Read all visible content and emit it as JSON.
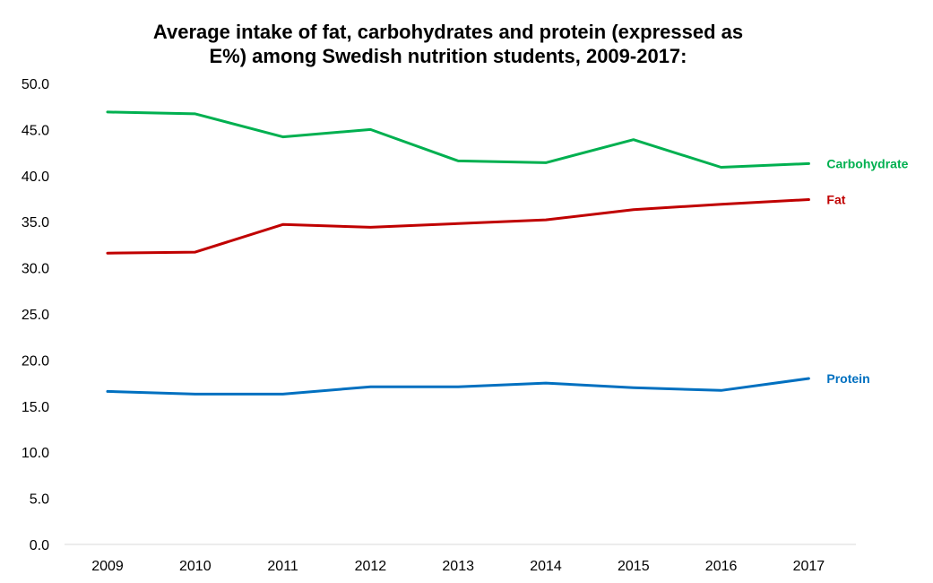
{
  "chart_data": {
    "type": "line",
    "title": [
      "Average intake of fat, carbohydrates and protein (expressed as",
      "E%) among Swedish nutrition students, 2009-2017:"
    ],
    "xlabel": "",
    "ylabel": "",
    "ylim": [
      0,
      50
    ],
    "yticks": [
      "0.0",
      "5.0",
      "10.0",
      "15.0",
      "20.0",
      "25.0",
      "30.0",
      "35.0",
      "40.0",
      "45.0",
      "50.0"
    ],
    "ytick_values": [
      0,
      5,
      10,
      15,
      20,
      25,
      30,
      35,
      40,
      45,
      50
    ],
    "categories": [
      "2009",
      "2010",
      "2011",
      "2012",
      "2013",
      "2014",
      "2015",
      "2016",
      "2017"
    ],
    "grid": false,
    "legend": "inline-right",
    "series": [
      {
        "name": "Carbohydrate",
        "color": "#00b050",
        "values": [
          46.9,
          46.7,
          44.2,
          45.0,
          41.6,
          41.4,
          43.9,
          40.9,
          41.3
        ]
      },
      {
        "name": "Fat",
        "color": "#c00000",
        "values": [
          31.6,
          31.7,
          34.7,
          34.4,
          34.8,
          35.2,
          36.3,
          36.9,
          37.4
        ]
      },
      {
        "name": "Protein",
        "color": "#0070c0",
        "values": [
          16.6,
          16.3,
          16.3,
          17.1,
          17.1,
          17.5,
          17.0,
          16.7,
          18.0
        ]
      }
    ]
  }
}
